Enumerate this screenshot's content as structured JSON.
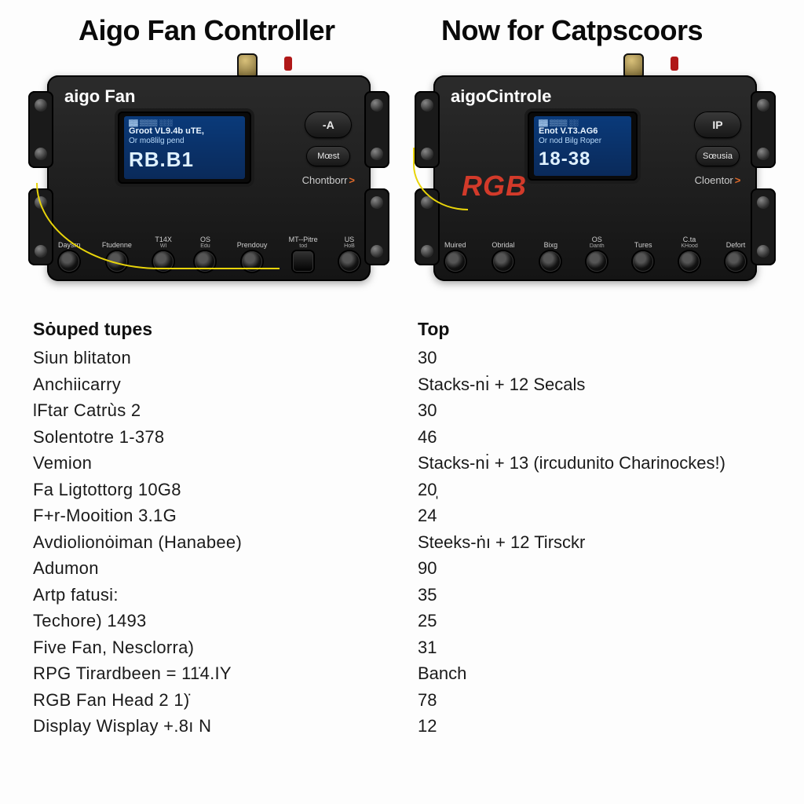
{
  "headings": {
    "left": "Aigo Fan Controller",
    "right": "Now for Catpscoors"
  },
  "devices": {
    "a": {
      "brand": "aigo Fan",
      "screen": {
        "l1": "▓▓ ▒▒▒▒ ░░░",
        "l2": "Groot VL9.4b uTE,",
        "l3": "Or mo8lilg pend",
        "big": "RB.B1"
      },
      "side": {
        "p1": "-A",
        "p2": "Mœst",
        "link": "Chontborr",
        "chev": ">"
      },
      "ports": [
        {
          "t": "Daysrn",
          "s": ""
        },
        {
          "t": "Ftudenne",
          "s": ""
        },
        {
          "t": "T14X",
          "s": "WI"
        },
        {
          "t": "OS",
          "s": "Edu"
        },
        {
          "t": "Prendouy",
          "s": ""
        },
        {
          "t": "MT--Pitre",
          "s": "tod"
        },
        {
          "t": "US",
          "s": "HoB"
        }
      ]
    },
    "b": {
      "brand": "aigoCintrole",
      "rgb": "RGB",
      "screen": {
        "l1": "▓▓ ▒▒▒▒ ░░",
        "l2": "Enot V.T3.AG6",
        "l3": "Or nod Bilg Roper",
        "big": "18-38"
      },
      "side": {
        "p1": "IP",
        "p2": "Sœusia",
        "link": "Cloentor",
        "chev": ">"
      },
      "ports": [
        {
          "t": "Muired",
          "s": ""
        },
        {
          "t": "Obridal",
          "s": ""
        },
        {
          "t": "Bixg",
          "s": ""
        },
        {
          "t": "OS",
          "s": "Danth"
        },
        {
          "t": "Tures",
          "s": ""
        },
        {
          "t": "C.ta",
          "s": "KHood"
        },
        {
          "t": "Defort",
          "s": ""
        }
      ]
    }
  },
  "table": {
    "hdr_left": "Sȯuped tupes",
    "hdr_right": "Top",
    "rows": [
      [
        "Siun blitaton",
        "30"
      ],
      [
        "Anchiicarry",
        "Stacks-nı̇ + 12 Secals"
      ],
      [
        "lFtar Catrùs 2",
        "30"
      ],
      [
        "Solentotre 1-378",
        "46"
      ],
      [
        "Vemion",
        "Stacks-nı̇ + 13 (ircudunito Charinockes!)"
      ],
      [
        "Fa Ligtottorg 10G8",
        "20̩"
      ],
      [
        "F+r-Mooition 3.1G",
        "24"
      ],
      [
        "Avdiolionȯiman (Hanabee)",
        "Steeks-ṅı + 12 Tirsckr"
      ],
      [
        "Adumon",
        "90"
      ],
      [
        "Artp fatusi:",
        "35"
      ],
      [
        "Techore) 1493",
        "25"
      ],
      [
        "Five Fan, Nesclorra)",
        "31"
      ],
      [
        "RPG Tirardbeen = 11̇4.IY",
        "Banch"
      ],
      [
        "RGB Fan Head 2 1)̇",
        "78"
      ],
      [
        "Display Wisplay +.8ı N",
        "12"
      ]
    ]
  },
  "style": {
    "bg": "#fdfdfd",
    "accent_yellow": "#e8d40a",
    "accent_orange": "#e06a2a",
    "rgb_red": "#d23a2a",
    "lcd_bg_top": "#0a3a7a",
    "lcd_bg_bot": "#0a2a5a"
  }
}
